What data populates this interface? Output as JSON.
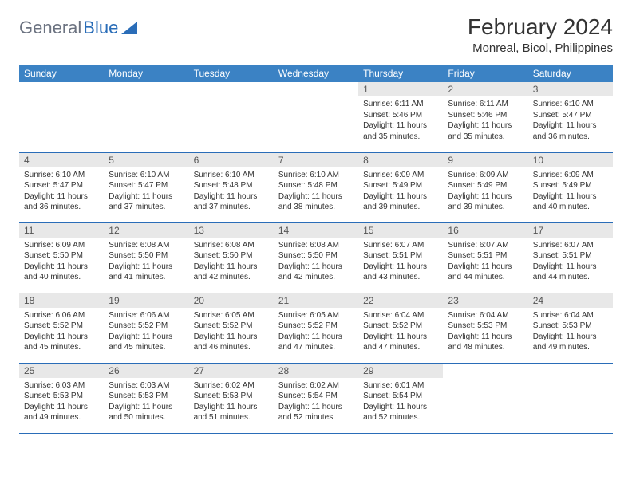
{
  "logo": {
    "text_gray": "General",
    "text_blue": "Blue"
  },
  "title": "February 2024",
  "location": "Monreal, Bicol, Philippines",
  "colors": {
    "header_bg": "#3b82c4",
    "header_fg": "#ffffff",
    "daynum_bg": "#e8e8e8",
    "row_border": "#2a6db8",
    "logo_gray": "#6b7280",
    "logo_blue": "#2a6db8"
  },
  "day_headers": [
    "Sunday",
    "Monday",
    "Tuesday",
    "Wednesday",
    "Thursday",
    "Friday",
    "Saturday"
  ],
  "weeks": [
    [
      null,
      null,
      null,
      null,
      {
        "n": "1",
        "sunrise": "6:11 AM",
        "sunset": "5:46 PM",
        "dl1": "Daylight: 11 hours",
        "dl2": "and 35 minutes."
      },
      {
        "n": "2",
        "sunrise": "6:11 AM",
        "sunset": "5:46 PM",
        "dl1": "Daylight: 11 hours",
        "dl2": "and 35 minutes."
      },
      {
        "n": "3",
        "sunrise": "6:10 AM",
        "sunset": "5:47 PM",
        "dl1": "Daylight: 11 hours",
        "dl2": "and 36 minutes."
      }
    ],
    [
      {
        "n": "4",
        "sunrise": "6:10 AM",
        "sunset": "5:47 PM",
        "dl1": "Daylight: 11 hours",
        "dl2": "and 36 minutes."
      },
      {
        "n": "5",
        "sunrise": "6:10 AM",
        "sunset": "5:47 PM",
        "dl1": "Daylight: 11 hours",
        "dl2": "and 37 minutes."
      },
      {
        "n": "6",
        "sunrise": "6:10 AM",
        "sunset": "5:48 PM",
        "dl1": "Daylight: 11 hours",
        "dl2": "and 37 minutes."
      },
      {
        "n": "7",
        "sunrise": "6:10 AM",
        "sunset": "5:48 PM",
        "dl1": "Daylight: 11 hours",
        "dl2": "and 38 minutes."
      },
      {
        "n": "8",
        "sunrise": "6:09 AM",
        "sunset": "5:49 PM",
        "dl1": "Daylight: 11 hours",
        "dl2": "and 39 minutes."
      },
      {
        "n": "9",
        "sunrise": "6:09 AM",
        "sunset": "5:49 PM",
        "dl1": "Daylight: 11 hours",
        "dl2": "and 39 minutes."
      },
      {
        "n": "10",
        "sunrise": "6:09 AM",
        "sunset": "5:49 PM",
        "dl1": "Daylight: 11 hours",
        "dl2": "and 40 minutes."
      }
    ],
    [
      {
        "n": "11",
        "sunrise": "6:09 AM",
        "sunset": "5:50 PM",
        "dl1": "Daylight: 11 hours",
        "dl2": "and 40 minutes."
      },
      {
        "n": "12",
        "sunrise": "6:08 AM",
        "sunset": "5:50 PM",
        "dl1": "Daylight: 11 hours",
        "dl2": "and 41 minutes."
      },
      {
        "n": "13",
        "sunrise": "6:08 AM",
        "sunset": "5:50 PM",
        "dl1": "Daylight: 11 hours",
        "dl2": "and 42 minutes."
      },
      {
        "n": "14",
        "sunrise": "6:08 AM",
        "sunset": "5:50 PM",
        "dl1": "Daylight: 11 hours",
        "dl2": "and 42 minutes."
      },
      {
        "n": "15",
        "sunrise": "6:07 AM",
        "sunset": "5:51 PM",
        "dl1": "Daylight: 11 hours",
        "dl2": "and 43 minutes."
      },
      {
        "n": "16",
        "sunrise": "6:07 AM",
        "sunset": "5:51 PM",
        "dl1": "Daylight: 11 hours",
        "dl2": "and 44 minutes."
      },
      {
        "n": "17",
        "sunrise": "6:07 AM",
        "sunset": "5:51 PM",
        "dl1": "Daylight: 11 hours",
        "dl2": "and 44 minutes."
      }
    ],
    [
      {
        "n": "18",
        "sunrise": "6:06 AM",
        "sunset": "5:52 PM",
        "dl1": "Daylight: 11 hours",
        "dl2": "and 45 minutes."
      },
      {
        "n": "19",
        "sunrise": "6:06 AM",
        "sunset": "5:52 PM",
        "dl1": "Daylight: 11 hours",
        "dl2": "and 45 minutes."
      },
      {
        "n": "20",
        "sunrise": "6:05 AM",
        "sunset": "5:52 PM",
        "dl1": "Daylight: 11 hours",
        "dl2": "and 46 minutes."
      },
      {
        "n": "21",
        "sunrise": "6:05 AM",
        "sunset": "5:52 PM",
        "dl1": "Daylight: 11 hours",
        "dl2": "and 47 minutes."
      },
      {
        "n": "22",
        "sunrise": "6:04 AM",
        "sunset": "5:52 PM",
        "dl1": "Daylight: 11 hours",
        "dl2": "and 47 minutes."
      },
      {
        "n": "23",
        "sunrise": "6:04 AM",
        "sunset": "5:53 PM",
        "dl1": "Daylight: 11 hours",
        "dl2": "and 48 minutes."
      },
      {
        "n": "24",
        "sunrise": "6:04 AM",
        "sunset": "5:53 PM",
        "dl1": "Daylight: 11 hours",
        "dl2": "and 49 minutes."
      }
    ],
    [
      {
        "n": "25",
        "sunrise": "6:03 AM",
        "sunset": "5:53 PM",
        "dl1": "Daylight: 11 hours",
        "dl2": "and 49 minutes."
      },
      {
        "n": "26",
        "sunrise": "6:03 AM",
        "sunset": "5:53 PM",
        "dl1": "Daylight: 11 hours",
        "dl2": "and 50 minutes."
      },
      {
        "n": "27",
        "sunrise": "6:02 AM",
        "sunset": "5:53 PM",
        "dl1": "Daylight: 11 hours",
        "dl2": "and 51 minutes."
      },
      {
        "n": "28",
        "sunrise": "6:02 AM",
        "sunset": "5:54 PM",
        "dl1": "Daylight: 11 hours",
        "dl2": "and 52 minutes."
      },
      {
        "n": "29",
        "sunrise": "6:01 AM",
        "sunset": "5:54 PM",
        "dl1": "Daylight: 11 hours",
        "dl2": "and 52 minutes."
      },
      null,
      null
    ]
  ],
  "labels": {
    "sunrise_prefix": "Sunrise: ",
    "sunset_prefix": "Sunset: "
  }
}
